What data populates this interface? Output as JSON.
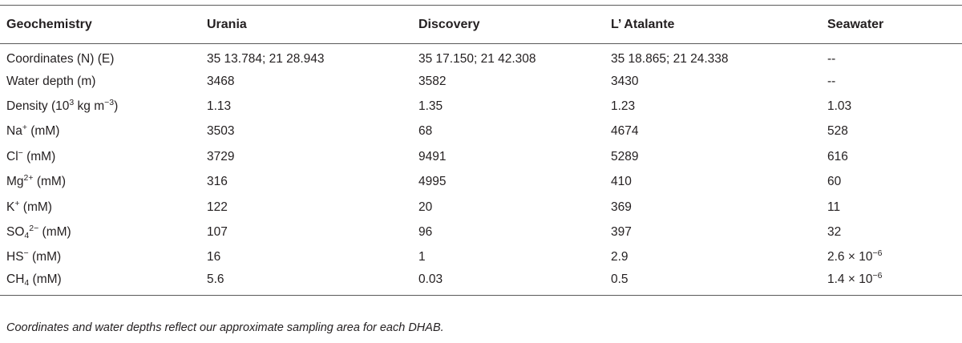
{
  "table": {
    "headers": [
      "Geochemistry",
      "Urania",
      "Discovery",
      "L’ Atalante",
      "Seawater"
    ],
    "rows": [
      {
        "label": {
          "base": "Coordinates (N) (E)"
        },
        "values": [
          "35 13.784; 21 28.943",
          "35 17.150; 21 42.308",
          "35 18.865; 21 24.338",
          "--"
        ]
      },
      {
        "label": {
          "base": "Water depth (m)"
        },
        "values": [
          "3468",
          "3582",
          "3430",
          "--"
        ]
      },
      {
        "label": {
          "base": "Density (10",
          "sup": "3",
          "tail": " kg m",
          "sup2": "−3",
          "tail2": ")"
        },
        "values": [
          "1.13",
          "1.35",
          "1.23",
          "1.03"
        ]
      },
      {
        "label": {
          "base": "Na",
          "sup": "+",
          "tail": " (mM)"
        },
        "values": [
          "3503",
          "68",
          "4674",
          "528"
        ]
      },
      {
        "label": {
          "base": "Cl",
          "sup": "−",
          "tail": " (mM)"
        },
        "values": [
          "3729",
          "9491",
          "5289",
          "616"
        ]
      },
      {
        "label": {
          "base": "Mg",
          "sup": "2+",
          "tail": " (mM)"
        },
        "values": [
          "316",
          "4995",
          "410",
          "60"
        ]
      },
      {
        "label": {
          "base": "K",
          "sup": "+",
          "tail": " (mM)"
        },
        "values": [
          "122",
          "20",
          "369",
          "11"
        ]
      },
      {
        "label": {
          "base": "SO",
          "sub": "4",
          "sup": "2−",
          "tail": " (mM)"
        },
        "values": [
          "107",
          "96",
          "397",
          "32"
        ]
      },
      {
        "label": {
          "base": "HS",
          "sup": "−",
          "tail": " (mM)"
        },
        "values": [
          "16",
          "1",
          "2.9",
          {
            "base": "2.6 × 10",
            "sup": "−6"
          }
        ]
      },
      {
        "label": {
          "base": "CH",
          "sub": "4",
          "tail": " (mM)"
        },
        "values": [
          "5.6",
          "0.03",
          "0.5",
          {
            "base": "1.4 × 10",
            "sup": "−6"
          }
        ]
      }
    ]
  },
  "footnote": "Coordinates and water depths reflect our approximate sampling area for each DHAB."
}
